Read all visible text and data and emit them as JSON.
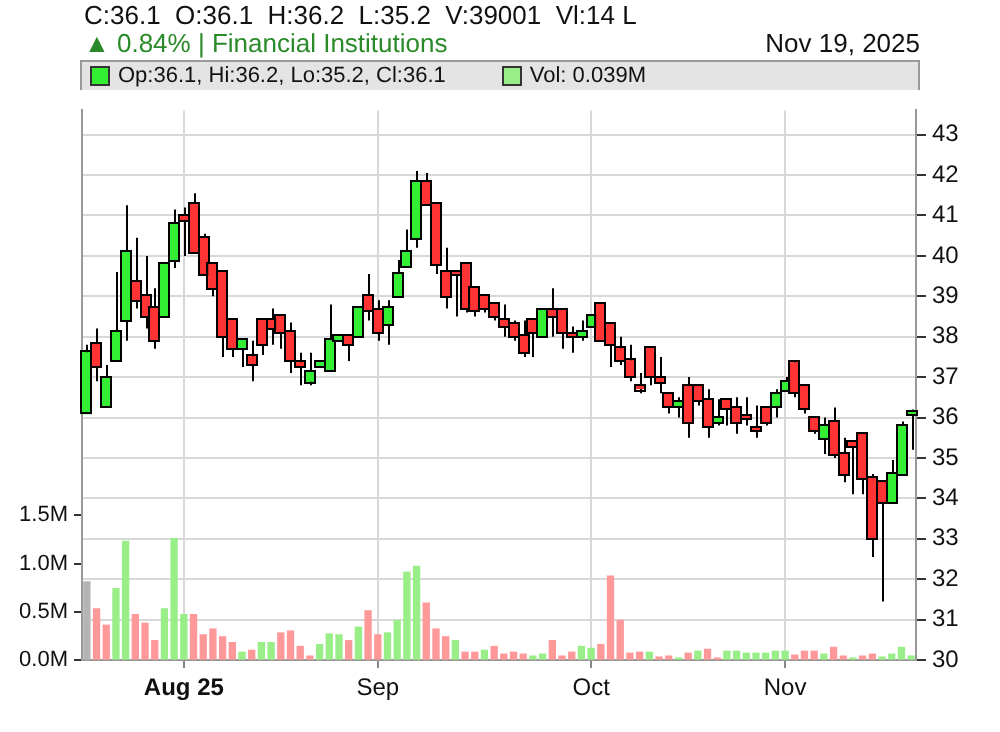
{
  "chart_data": {
    "type": "candlestick",
    "title": "C:36.1  O:36.1  H:36.2  L:35.2  V:39001  Vl:14 L",
    "subtitle": "▲ 0.84% | Financial Institutions",
    "annotations": [
      "Nov 19, 2025"
    ],
    "categories": [
      null,
      null,
      null,
      null,
      null,
      null,
      null,
      null,
      null,
      null,
      "Aug 25",
      null,
      null,
      null,
      null,
      null,
      null,
      null,
      null,
      null,
      null,
      null,
      null,
      null,
      null,
      null,
      null,
      null,
      null,
      null,
      "Sep",
      null,
      null,
      null,
      null,
      null,
      null,
      null,
      null,
      null,
      null,
      null,
      null,
      null,
      null,
      null,
      null,
      null,
      null,
      null,
      null,
      null,
      "Oct",
      null,
      null,
      null,
      null,
      null,
      null,
      null,
      null,
      null,
      null,
      null,
      null,
      null,
      null,
      null,
      null,
      null,
      null,
      null,
      "Nov",
      null,
      null,
      null,
      null,
      null,
      null,
      null,
      null,
      null,
      null,
      null,
      null,
      null
    ],
    "ylim": [
      30,
      43.6
    ],
    "yticks": [
      30,
      31,
      32,
      33,
      34,
      35,
      36,
      37,
      38,
      39,
      40,
      41,
      42,
      43
    ],
    "y2lim": [
      0,
      5.7
    ],
    "y2ticks": [
      {
        "value": 0,
        "label": "0.0M"
      },
      {
        "value": 0.5,
        "label": "0.5M"
      },
      {
        "value": 1,
        "label": "1.0M"
      },
      {
        "value": 1.5,
        "label": "1.5M"
      }
    ],
    "grid": true,
    "legend": "top",
    "series": [
      {
        "name": "Op:36.1, Hi:36.2, Lo:35.2, Cl:36.1",
        "color": "#33ee33",
        "ohlc": [
          [
            36.1,
            37.8,
            36.1,
            37.6
          ],
          [
            37.8,
            38.2,
            36.9,
            37.25
          ],
          [
            36.3,
            37.3,
            36.3,
            37.0
          ],
          [
            37.4,
            39.6,
            37.4,
            38.1
          ],
          [
            38.4,
            41.25,
            37.9,
            40.1
          ],
          [
            39.35,
            40.45,
            38.7,
            38.9
          ],
          [
            39.0,
            40.0,
            38.2,
            38.5
          ],
          [
            38.7,
            39.2,
            37.7,
            37.9
          ],
          [
            38.5,
            39.8,
            38.5,
            39.8
          ],
          [
            39.9,
            41.15,
            39.7,
            40.8
          ],
          [
            41.0,
            41.2,
            40.0,
            40.9
          ],
          [
            41.3,
            41.55,
            40.1,
            40.1
          ],
          [
            40.45,
            40.55,
            39.55,
            39.55
          ],
          [
            39.8,
            39.8,
            39.0,
            39.2
          ],
          [
            39.6,
            39.6,
            37.5,
            38.0
          ],
          [
            38.4,
            38.4,
            37.5,
            37.7
          ],
          [
            37.7,
            37.9,
            37.25,
            37.9
          ],
          [
            37.5,
            37.9,
            36.9,
            37.3
          ],
          [
            38.4,
            38.4,
            37.55,
            37.8
          ],
          [
            38.4,
            38.7,
            37.8,
            38.2
          ],
          [
            38.5,
            38.5,
            37.7,
            38.1
          ],
          [
            38.1,
            38.35,
            37.1,
            37.4
          ],
          [
            37.35,
            37.6,
            36.8,
            37.25
          ],
          [
            36.9,
            37.6,
            36.8,
            37.15
          ],
          [
            37.25,
            37.35,
            37.25,
            37.35
          ],
          [
            37.15,
            38.8,
            37.15,
            37.9
          ],
          [
            37.9,
            38.0,
            37.9,
            38.0
          ],
          [
            38.0,
            38.0,
            37.4,
            37.8
          ],
          [
            38.0,
            38.7,
            38.0,
            38.7
          ],
          [
            39.0,
            39.55,
            38.4,
            38.65
          ],
          [
            38.65,
            38.9,
            37.9,
            38.1
          ],
          [
            38.3,
            38.9,
            37.8,
            38.7
          ],
          [
            39.0,
            39.9,
            39.0,
            39.55
          ],
          [
            39.75,
            40.65,
            39.75,
            40.1
          ],
          [
            40.45,
            42.1,
            40.2,
            41.85
          ],
          [
            41.85,
            42.05,
            41.3,
            41.3
          ],
          [
            41.3,
            41.3,
            39.55,
            39.8
          ],
          [
            39.6,
            40.2,
            38.7,
            39.0
          ],
          [
            39.6,
            39.6,
            38.5,
            39.55
          ],
          [
            39.8,
            39.8,
            38.6,
            38.7
          ],
          [
            39.2,
            39.2,
            38.5,
            38.65
          ],
          [
            39.0,
            39.0,
            38.6,
            38.7
          ],
          [
            38.8,
            38.85,
            38.4,
            38.5
          ],
          [
            38.4,
            38.8,
            38.0,
            38.25
          ],
          [
            38.3,
            38.4,
            37.9,
            38.0
          ],
          [
            38.0,
            38.4,
            37.5,
            37.6
          ],
          [
            38.4,
            38.4,
            37.5,
            38.1
          ],
          [
            38.0,
            38.7,
            38.0,
            38.65
          ],
          [
            38.65,
            39.2,
            38.0,
            38.5
          ],
          [
            38.65,
            38.65,
            37.7,
            38.1
          ],
          [
            38.05,
            38.25,
            37.6,
            38.0
          ],
          [
            38.0,
            38.4,
            37.9,
            38.1
          ],
          [
            38.25,
            38.5,
            38.25,
            38.5
          ],
          [
            38.8,
            38.8,
            37.9,
            37.9
          ],
          [
            38.3,
            38.3,
            37.25,
            37.8
          ],
          [
            37.7,
            38.0,
            37.3,
            37.4
          ],
          [
            37.4,
            37.8,
            36.9,
            37.0
          ],
          [
            36.8,
            37.1,
            36.6,
            36.72
          ],
          [
            37.7,
            37.7,
            36.8,
            37.0
          ],
          [
            37.0,
            37.5,
            36.6,
            36.9
          ],
          [
            36.6,
            36.6,
            36.1,
            36.3
          ],
          [
            36.3,
            36.5,
            36.0,
            36.4
          ],
          [
            36.8,
            37.0,
            35.5,
            35.9
          ],
          [
            36.8,
            36.8,
            36.3,
            36.45
          ],
          [
            36.45,
            36.7,
            35.5,
            35.8
          ],
          [
            35.9,
            36.45,
            35.8,
            36.0
          ],
          [
            36.45,
            36.45,
            35.8,
            36.25
          ],
          [
            36.25,
            36.5,
            35.6,
            35.9
          ],
          [
            36.05,
            36.5,
            35.8,
            36.0
          ],
          [
            35.75,
            36.3,
            35.5,
            35.7
          ],
          [
            36.25,
            36.25,
            35.8,
            35.9
          ],
          [
            36.3,
            36.7,
            36.0,
            36.6
          ],
          [
            36.7,
            37.0,
            36.7,
            36.9
          ],
          [
            37.35,
            37.4,
            36.5,
            36.6
          ],
          [
            36.8,
            36.8,
            36.1,
            36.25
          ],
          [
            36.0,
            36.0,
            35.6,
            35.7
          ],
          [
            35.5,
            36.0,
            35.1,
            35.8
          ],
          [
            35.9,
            36.25,
            35.0,
            35.1
          ],
          [
            35.1,
            35.5,
            34.4,
            34.6
          ],
          [
            35.4,
            35.4,
            34.1,
            35.3
          ],
          [
            35.6,
            35.6,
            34.1,
            34.5
          ],
          [
            34.5,
            34.6,
            32.55,
            33.0
          ],
          [
            34.4,
            34.4,
            31.45,
            33.9
          ],
          [
            33.9,
            34.95,
            33.9,
            34.6
          ],
          [
            34.6,
            35.9,
            34.6,
            35.8
          ],
          [
            36.1,
            36.2,
            35.2,
            36.1
          ]
        ],
        "colors": [
          "#33ee33",
          "#ff3333",
          "#33ee33",
          "#33ee33",
          "#33ee33",
          "#ff3333",
          "#ff3333",
          "#ff3333",
          "#33ee33",
          "#33ee33",
          "#ff3333",
          "#ff3333",
          "#ff3333",
          "#ff3333",
          "#ff3333",
          "#ff3333",
          "#33ee33",
          "#ff3333",
          "#ff3333",
          "#ff3333",
          "#ff3333",
          "#ff3333",
          "#ff3333",
          "#33ee33",
          "#33ee33",
          "#33ee33",
          "#33ee33",
          "#ff3333",
          "#33ee33",
          "#ff3333",
          "#ff3333",
          "#33ee33",
          "#33ee33",
          "#33ee33",
          "#33ee33",
          "#ff3333",
          "#ff3333",
          "#ff3333",
          "#ff3333",
          "#ff3333",
          "#ff3333",
          "#ff3333",
          "#ff3333",
          "#ff3333",
          "#ff3333",
          "#ff3333",
          "#ff3333",
          "#33ee33",
          "#ff3333",
          "#ff3333",
          "#ff3333",
          "#33ee33",
          "#33ee33",
          "#ff3333",
          "#ff3333",
          "#ff3333",
          "#ff3333",
          "#ff3333",
          "#ff3333",
          "#ff3333",
          "#ff3333",
          "#33ee33",
          "#ff3333",
          "#ff3333",
          "#ff3333",
          "#33ee33",
          "#ff3333",
          "#ff3333",
          "#ff3333",
          "#ff3333",
          "#ff3333",
          "#33ee33",
          "#33ee33",
          "#ff3333",
          "#ff3333",
          "#ff3333",
          "#33ee33",
          "#ff3333",
          "#ff3333",
          "#ff3333",
          "#ff3333",
          "#ff3333",
          "#ff3333",
          "#33ee33",
          "#33ee33",
          "#33ee33"
        ]
      },
      {
        "name": "Vol: 0.039M",
        "type": "bar",
        "axis": "y2",
        "color": "#99ee88",
        "values": [
          0.81,
          0.53,
          0.36,
          0.74,
          1.23,
          0.47,
          0.38,
          0.2,
          0.53,
          1.26,
          0.47,
          0.47,
          0.26,
          0.32,
          0.24,
          0.18,
          0.08,
          0.1,
          0.18,
          0.18,
          0.28,
          0.3,
          0.14,
          0.04,
          0.16,
          0.27,
          0.26,
          0.2,
          0.34,
          0.51,
          0.26,
          0.28,
          0.41,
          0.91,
          0.97,
          0.59,
          0.32,
          0.24,
          0.2,
          0.08,
          0.08,
          0.1,
          0.14,
          0.06,
          0.08,
          0.06,
          0.04,
          0.06,
          0.2,
          0.04,
          0.08,
          0.14,
          0.12,
          0.16,
          0.87,
          0.41,
          0.07,
          0.08,
          0.08,
          0.03,
          0.04,
          0.02,
          0.07,
          0.09,
          0.11,
          0.02,
          0.09,
          0.09,
          0.07,
          0.07,
          0.07,
          0.09,
          0.09,
          0.05,
          0.09,
          0.09,
          0.06,
          0.13,
          0.04,
          0.02,
          0.04,
          0.06,
          0.03,
          0.06,
          0.13,
          0.04
        ],
        "colors": [
          "#b4b4b4",
          "#ff9999",
          "#ff9999",
          "#99ee88",
          "#99ee88",
          "#ff9999",
          "#ff9999",
          "#ff9999",
          "#99ee88",
          "#99ee88",
          "#99ee88",
          "#ff9999",
          "#ff9999",
          "#ff9999",
          "#ff9999",
          "#ff9999",
          "#99ee88",
          "#ff9999",
          "#99ee88",
          "#99ee88",
          "#ff9999",
          "#ff9999",
          "#ff9999",
          "#ff9999",
          "#99ee88",
          "#99ee88",
          "#99ee88",
          "#ff9999",
          "#99ee88",
          "#ff9999",
          "#ff9999",
          "#99ee88",
          "#99ee88",
          "#99ee88",
          "#99ee88",
          "#ff9999",
          "#ff9999",
          "#ff9999",
          "#99ee88",
          "#ff9999",
          "#ff9999",
          "#99ee88",
          "#ff9999",
          "#ff9999",
          "#ff9999",
          "#ff9999",
          "#99ee88",
          "#99ee88",
          "#ff9999",
          "#ff9999",
          "#ff9999",
          "#99ee88",
          "#99ee88",
          "#ff9999",
          "#ff9999",
          "#ff9999",
          "#ff9999",
          "#ff9999",
          "#99ee88",
          "#ff9999",
          "#ff9999",
          "#99ee88",
          "#ff9999",
          "#99ee88",
          "#ff9999",
          "#ff9999",
          "#99ee88",
          "#99ee88",
          "#99ee88",
          "#99ee88",
          "#99ee88",
          "#99ee88",
          "#99ee88",
          "#ff9999",
          "#ff9999",
          "#ff9999",
          "#99ee88",
          "#ff9999",
          "#ff9999",
          "#99ee88",
          "#ff9999",
          "#ff9999",
          "#99ee88",
          "#99ee88",
          "#99ee88",
          "#99ee88"
        ]
      }
    ]
  }
}
